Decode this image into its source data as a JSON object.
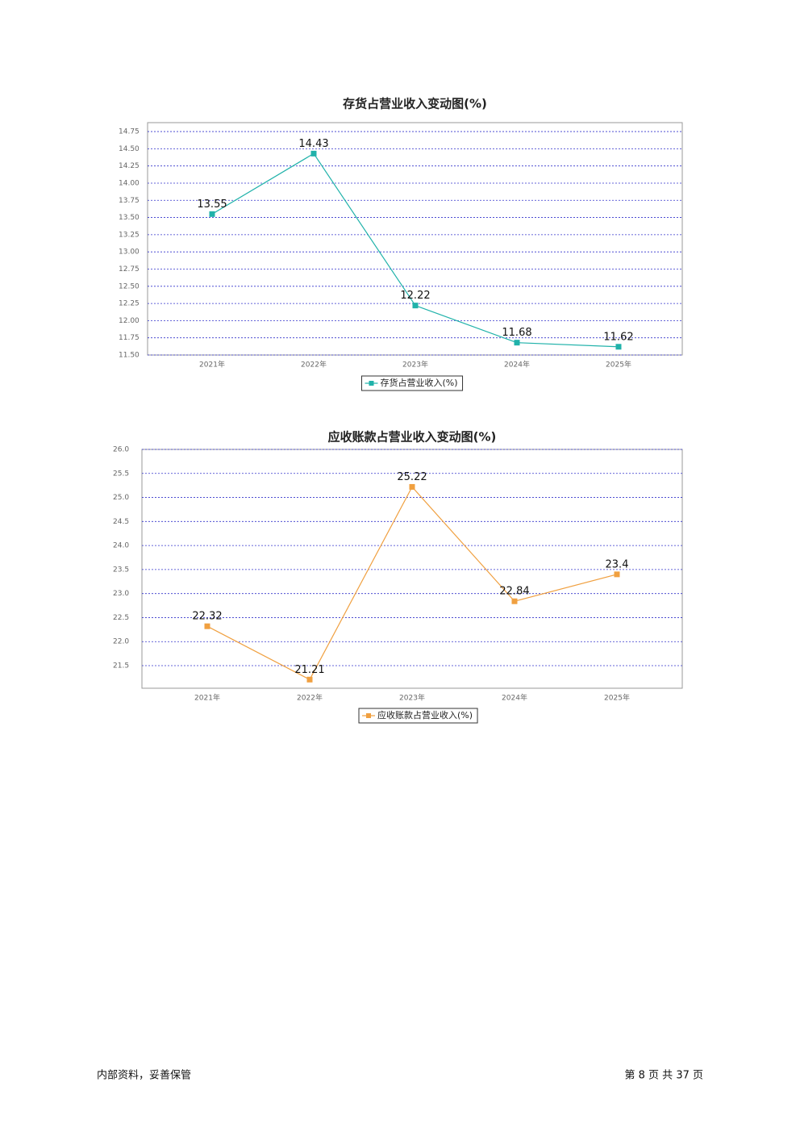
{
  "chart_data": [
    {
      "type": "line",
      "title": "存货占营业收入变动图(%)",
      "categories": [
        "2021年",
        "2022年",
        "2023年",
        "2024年",
        "2025年"
      ],
      "series": [
        {
          "name": "存货占营业收入(%)",
          "color": "#20b2aa",
          "values": [
            13.55,
            14.43,
            12.22,
            11.68,
            11.62
          ]
        }
      ],
      "ylim": [
        11.5,
        14.88
      ],
      "yticks": [
        {
          "value": 11.5,
          "label": "11.50"
        },
        11.75,
        {
          "value": 12,
          "label": "12.00"
        },
        12.25,
        {
          "value": 12.5,
          "label": "12.50"
        },
        12.75,
        {
          "value": 13,
          "label": "13.00"
        },
        13.25,
        {
          "value": 13.5,
          "label": "13.50"
        },
        13.75,
        {
          "value": 14,
          "label": "14.00"
        },
        14.25,
        {
          "value": 14.5,
          "label": "14.50"
        },
        14.75
      ],
      "grid": true
    },
    {
      "type": "line",
      "title": "应收账款占营业收入变动图(%)",
      "categories": [
        "2021年",
        "2022年",
        "2023年",
        "2024年",
        "2025年"
      ],
      "series": [
        {
          "name": "应收账款占营业收入(%)",
          "color": "#f0a040",
          "values": [
            22.32,
            21.21,
            25.22,
            22.84,
            23.4
          ]
        }
      ],
      "ylim": [
        21.03,
        26.0
      ],
      "yticks": [
        21.5,
        {
          "value": 22,
          "label": "22.0"
        },
        22.5,
        {
          "value": 23,
          "label": "23.0"
        },
        23.5,
        {
          "value": 24,
          "label": "24.0"
        },
        24.5,
        {
          "value": 25,
          "label": "25.0"
        },
        25.5,
        {
          "value": 26,
          "label": "26.0"
        }
      ],
      "grid": true
    }
  ],
  "footer": {
    "left": "内部资料，妥善保管",
    "right": "第 8 页 共 37 页"
  }
}
